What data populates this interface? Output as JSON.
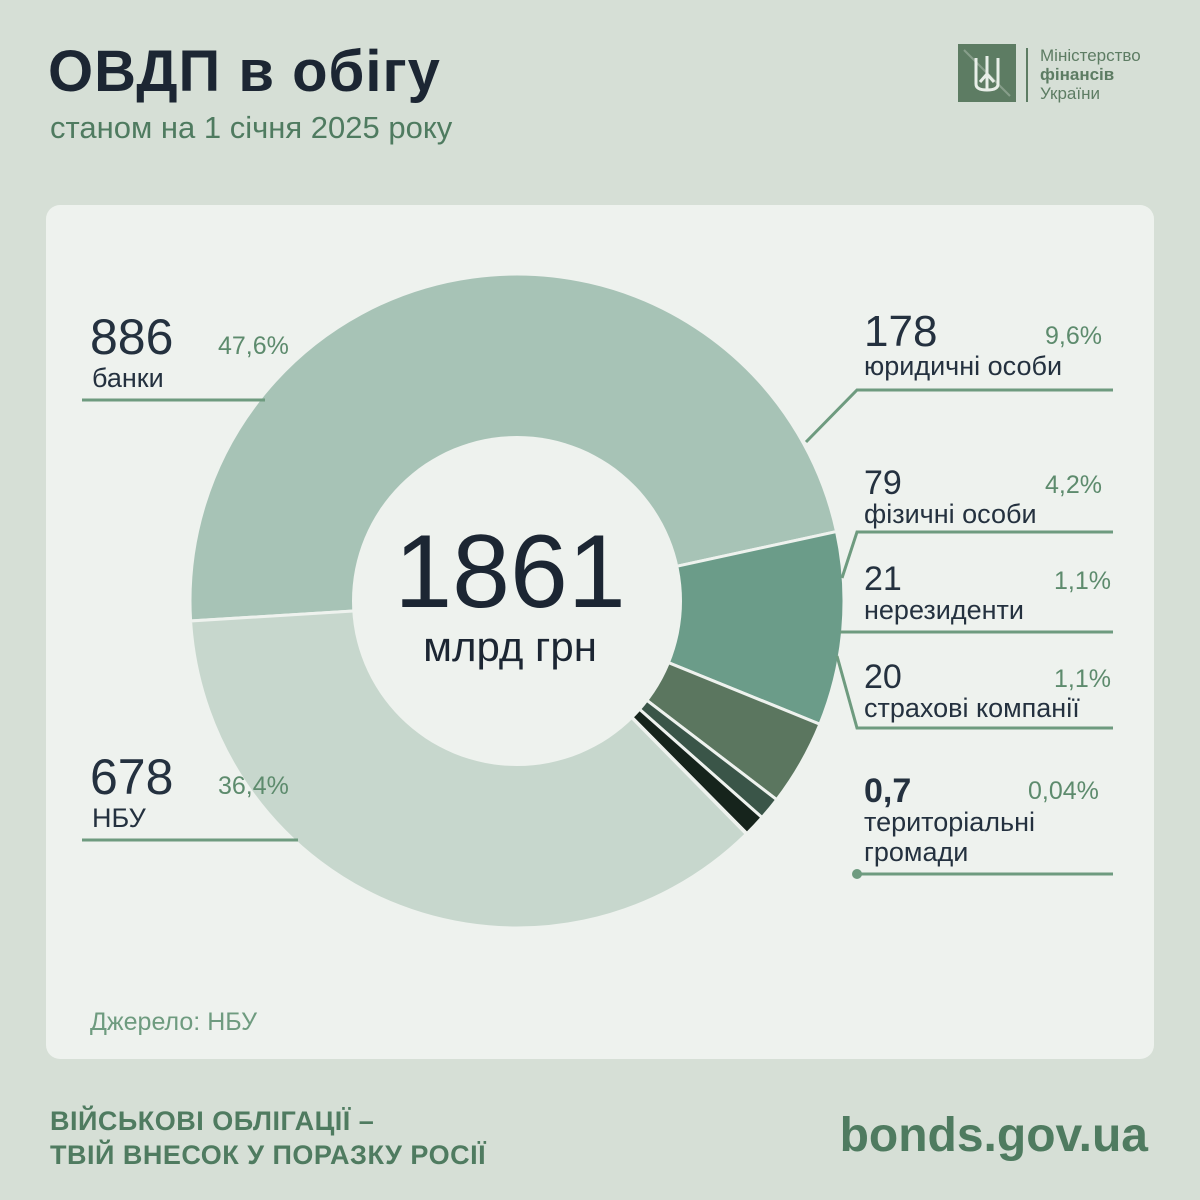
{
  "header": {
    "title": "ОВДП в обігу",
    "subtitle": "станом на 1 січня 2025 року"
  },
  "logo": {
    "line1": "Міністерство",
    "line2": "фінансів",
    "line3": "України",
    "icon": "trident-icon"
  },
  "center": {
    "value": "1861",
    "unit": "млрд грн"
  },
  "source": "Джерело: НБУ",
  "footer": {
    "slogan_line1": "ВІЙСЬКОВІ ОБЛІГАЦІЇ –",
    "slogan_line2": "ТВІЙ ВНЕСОК У ПОРАЗКУ РОСІЇ",
    "site": "bonds.gov.ua"
  },
  "colors": {
    "background": "#d6dfd6",
    "card": "#eef2ee",
    "accent": "#4f7b60",
    "line": "#6e9b7f"
  },
  "chart_data": {
    "type": "pie",
    "title": "ОВДП в обігу",
    "subtitle": "станом на 1 січня 2025 року",
    "unit": "млрд грн",
    "total": 1861,
    "legend": "labels-around",
    "slices": [
      {
        "label": "банки",
        "value": 886,
        "value_text": "886",
        "percent": "47,6%",
        "color": "#a7c3b6"
      },
      {
        "label": "юридичні особи",
        "value": 178,
        "value_text": "178",
        "percent": "9,6%",
        "color": "#6b9c89"
      },
      {
        "label": "фізичні особи",
        "value": 79,
        "value_text": "79",
        "percent": "4,2%",
        "color": "#5b765f"
      },
      {
        "label": "нерезиденти",
        "value": 21,
        "value_text": "21",
        "percent": "1,1%",
        "color": "#3a5548"
      },
      {
        "label": "страхові компанії",
        "value": 20,
        "value_text": "20",
        "percent": "1,1%",
        "color": "#16241c"
      },
      {
        "label": "територіальні громади",
        "value": 0.7,
        "value_text": "0,7",
        "percent": "0,04%",
        "color": "#5b765f"
      },
      {
        "label": "НБУ",
        "value": 678,
        "value_text": "678",
        "percent": "36,4%",
        "color": "#c7d7cd"
      }
    ]
  }
}
